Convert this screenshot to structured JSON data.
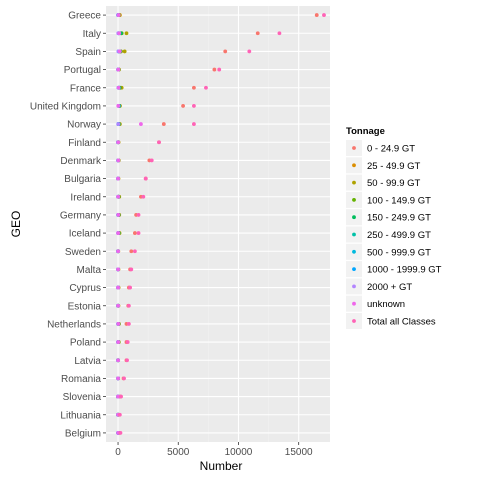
{
  "chart_data": {
    "type": "scatter",
    "xlabel": "Number",
    "ylabel": "GEO",
    "xlim": [
      -1000,
      17600
    ],
    "x_ticks": [
      0,
      5000,
      10000,
      15000
    ],
    "x_tick_labels": [
      "0",
      "5000",
      "10000",
      "15000"
    ],
    "categories": [
      "Greece",
      "Italy",
      "Spain",
      "Portugal",
      "France",
      "United Kingdom",
      "Norway",
      "Finland",
      "Denmark",
      "Bulgaria",
      "Ireland",
      "Germany",
      "Iceland",
      "Sweden",
      "Malta",
      "Cyprus",
      "Estonia",
      "Netherlands",
      "Poland",
      "Latvia",
      "Romania",
      "Slovenia",
      "Lithuania",
      "Belgium"
    ],
    "grid": true,
    "legend": {
      "title": "Tonnage",
      "position": "right"
    },
    "series": [
      {
        "name": "0 - 24.9 GT",
        "color": "#F8766D",
        "values": [
          16500,
          11600,
          8900,
          8000,
          6300,
          5400,
          3800,
          3400,
          2600,
          2300,
          1900,
          1500,
          1400,
          1100,
          1000,
          900,
          850,
          700,
          700,
          700,
          450,
          200,
          100,
          80
        ]
      },
      {
        "name": "25 - 49.9 GT",
        "color": "#DB8E00",
        "values": [
          150,
          300,
          250,
          80,
          200,
          150,
          100,
          40,
          60,
          30,
          100,
          100,
          100,
          20,
          30,
          40,
          30,
          80,
          60,
          10,
          20,
          5,
          5,
          20
        ]
      },
      {
        "name": "50 - 99.9 GT",
        "color": "#AEA200",
        "values": [
          120,
          700,
          550,
          60,
          300,
          150,
          150,
          30,
          40,
          20,
          80,
          80,
          120,
          10,
          20,
          30,
          20,
          60,
          50,
          10,
          10,
          3,
          5,
          30
        ]
      },
      {
        "name": "100 - 149.9 GT",
        "color": "#64B200",
        "values": [
          60,
          300,
          220,
          30,
          150,
          80,
          60,
          10,
          20,
          8,
          40,
          40,
          40,
          5,
          5,
          10,
          10,
          30,
          30,
          5,
          5,
          2,
          3,
          20
        ]
      },
      {
        "name": "150 - 249.9 GT",
        "color": "#00BD5C",
        "values": [
          40,
          250,
          180,
          30,
          120,
          100,
          50,
          10,
          20,
          5,
          30,
          50,
          40,
          5,
          5,
          5,
          5,
          40,
          20,
          5,
          5,
          2,
          2,
          15
        ]
      },
      {
        "name": "250 - 499.9 GT",
        "color": "#00C1A7",
        "values": [
          20,
          100,
          100,
          20,
          60,
          60,
          40,
          5,
          10,
          3,
          20,
          20,
          30,
          3,
          3,
          3,
          3,
          20,
          10,
          3,
          3,
          1,
          1,
          10
        ]
      },
      {
        "name": "500 - 999.9 GT",
        "color": "#00BADE",
        "values": [
          10,
          50,
          50,
          10,
          40,
          50,
          30,
          3,
          10,
          2,
          10,
          10,
          20,
          2,
          2,
          2,
          2,
          10,
          5,
          2,
          2,
          1,
          1,
          5
        ]
      },
      {
        "name": "1000 - 1999.9 GT",
        "color": "#00A6FF",
        "values": [
          5,
          30,
          40,
          10,
          30,
          40,
          20,
          2,
          10,
          1,
          10,
          10,
          10,
          1,
          1,
          1,
          1,
          10,
          5,
          1,
          1,
          0,
          0,
          5
        ]
      },
      {
        "name": "2000 + GT",
        "color": "#B385FF",
        "values": [
          2,
          20,
          30,
          5,
          30,
          30,
          20,
          1,
          5,
          0,
          5,
          10,
          5,
          0,
          0,
          0,
          0,
          10,
          5,
          0,
          0,
          0,
          0,
          5
        ]
      },
      {
        "name": "unknown",
        "color": "#EF67EB",
        "values": [
          50,
          100,
          150,
          20,
          50,
          20,
          1900,
          10,
          20,
          5,
          10,
          20,
          10,
          5,
          5,
          5,
          5,
          20,
          10,
          5,
          5,
          2,
          2,
          10
        ]
      },
      {
        "name": "Total all Classes",
        "color": "#FF63B6",
        "values": [
          17100,
          13400,
          10900,
          8400,
          7300,
          6300,
          6300,
          3400,
          2800,
          2300,
          2100,
          1700,
          1700,
          1400,
          1100,
          1000,
          900,
          900,
          800,
          750,
          500,
          250,
          150,
          200
        ]
      }
    ]
  }
}
